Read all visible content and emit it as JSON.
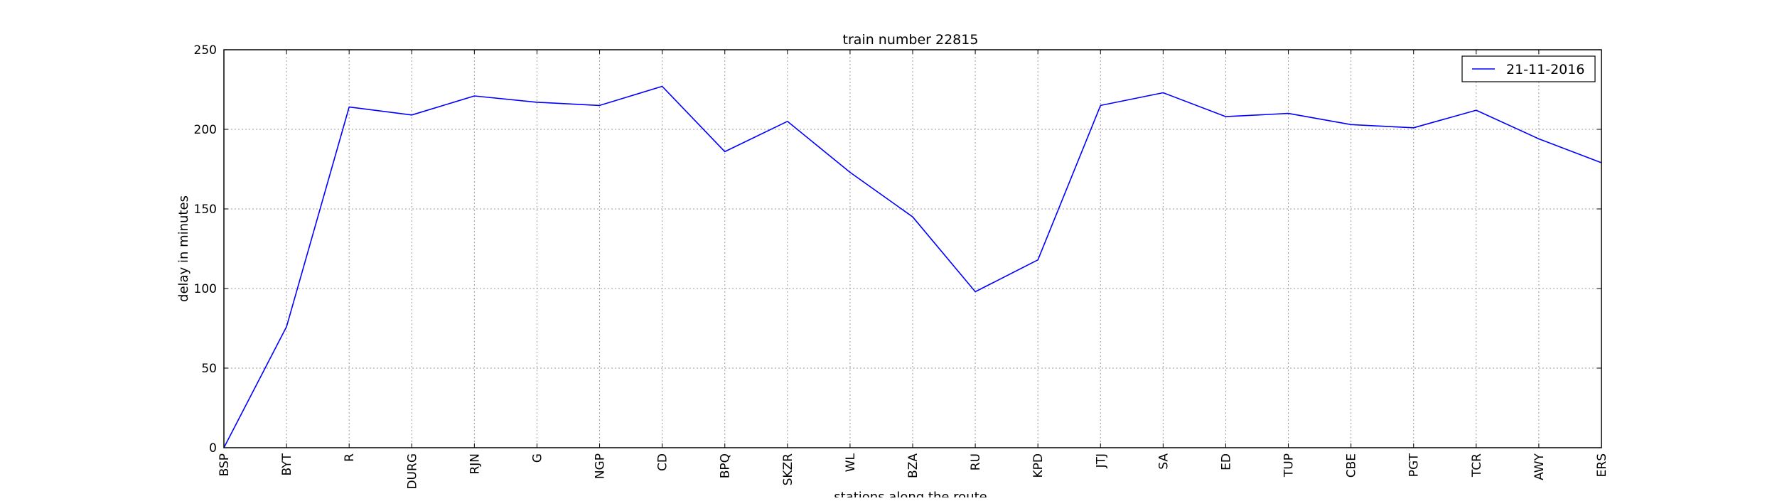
{
  "chart_data": {
    "type": "line",
    "title": "train number 22815",
    "xlabel": "stations along the route",
    "ylabel": "delay in minutes",
    "ylim": [
      0,
      250
    ],
    "yticks": [
      0,
      50,
      100,
      150,
      200,
      250
    ],
    "grid": true,
    "legend_position": "top-right",
    "categories": [
      "BSP",
      "BYT",
      "R",
      "DURG",
      "RJN",
      "G",
      "NGP",
      "CD",
      "BPQ",
      "SKZR",
      "WL",
      "BZA",
      "RU",
      "KPD",
      "JTJ",
      "SA",
      "ED",
      "TUP",
      "CBE",
      "PGT",
      "TCR",
      "AWY",
      "ERS"
    ],
    "series": [
      {
        "name": "21-11-2016",
        "color": "#0000ff",
        "values": [
          0,
          76,
          214,
          209,
          221,
          217,
          215,
          227,
          186,
          205,
          173,
          145,
          98,
          118,
          215,
          223,
          208,
          210,
          203,
          201,
          212,
          194,
          179
        ]
      }
    ]
  }
}
